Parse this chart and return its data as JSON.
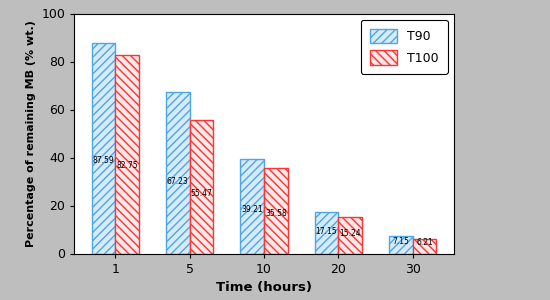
{
  "categories": [
    "1",
    "5",
    "10",
    "20",
    "30"
  ],
  "T90": [
    87.59,
    67.23,
    39.21,
    17.15,
    7.15
  ],
  "T100": [
    82.75,
    55.47,
    35.58,
    15.24,
    6.21
  ],
  "T90_color": "#4da6e8",
  "T100_color": "#ff3333",
  "T90_face": "#d6eaf8",
  "T100_face": "#fde8e8",
  "xlabel": "Time (hours)",
  "ylabel": "Percentage of remaining MB (% wt.)",
  "ylim": [
    0,
    100
  ],
  "yticks": [
    0,
    20,
    40,
    60,
    80,
    100
  ],
  "background_color": "#ffffff",
  "outer_background": "#bebebe",
  "bar_width": 0.32,
  "label_T90": "T90",
  "label_T100": "T100",
  "label_fontsize": 5.5,
  "legend_fontsize": 9
}
